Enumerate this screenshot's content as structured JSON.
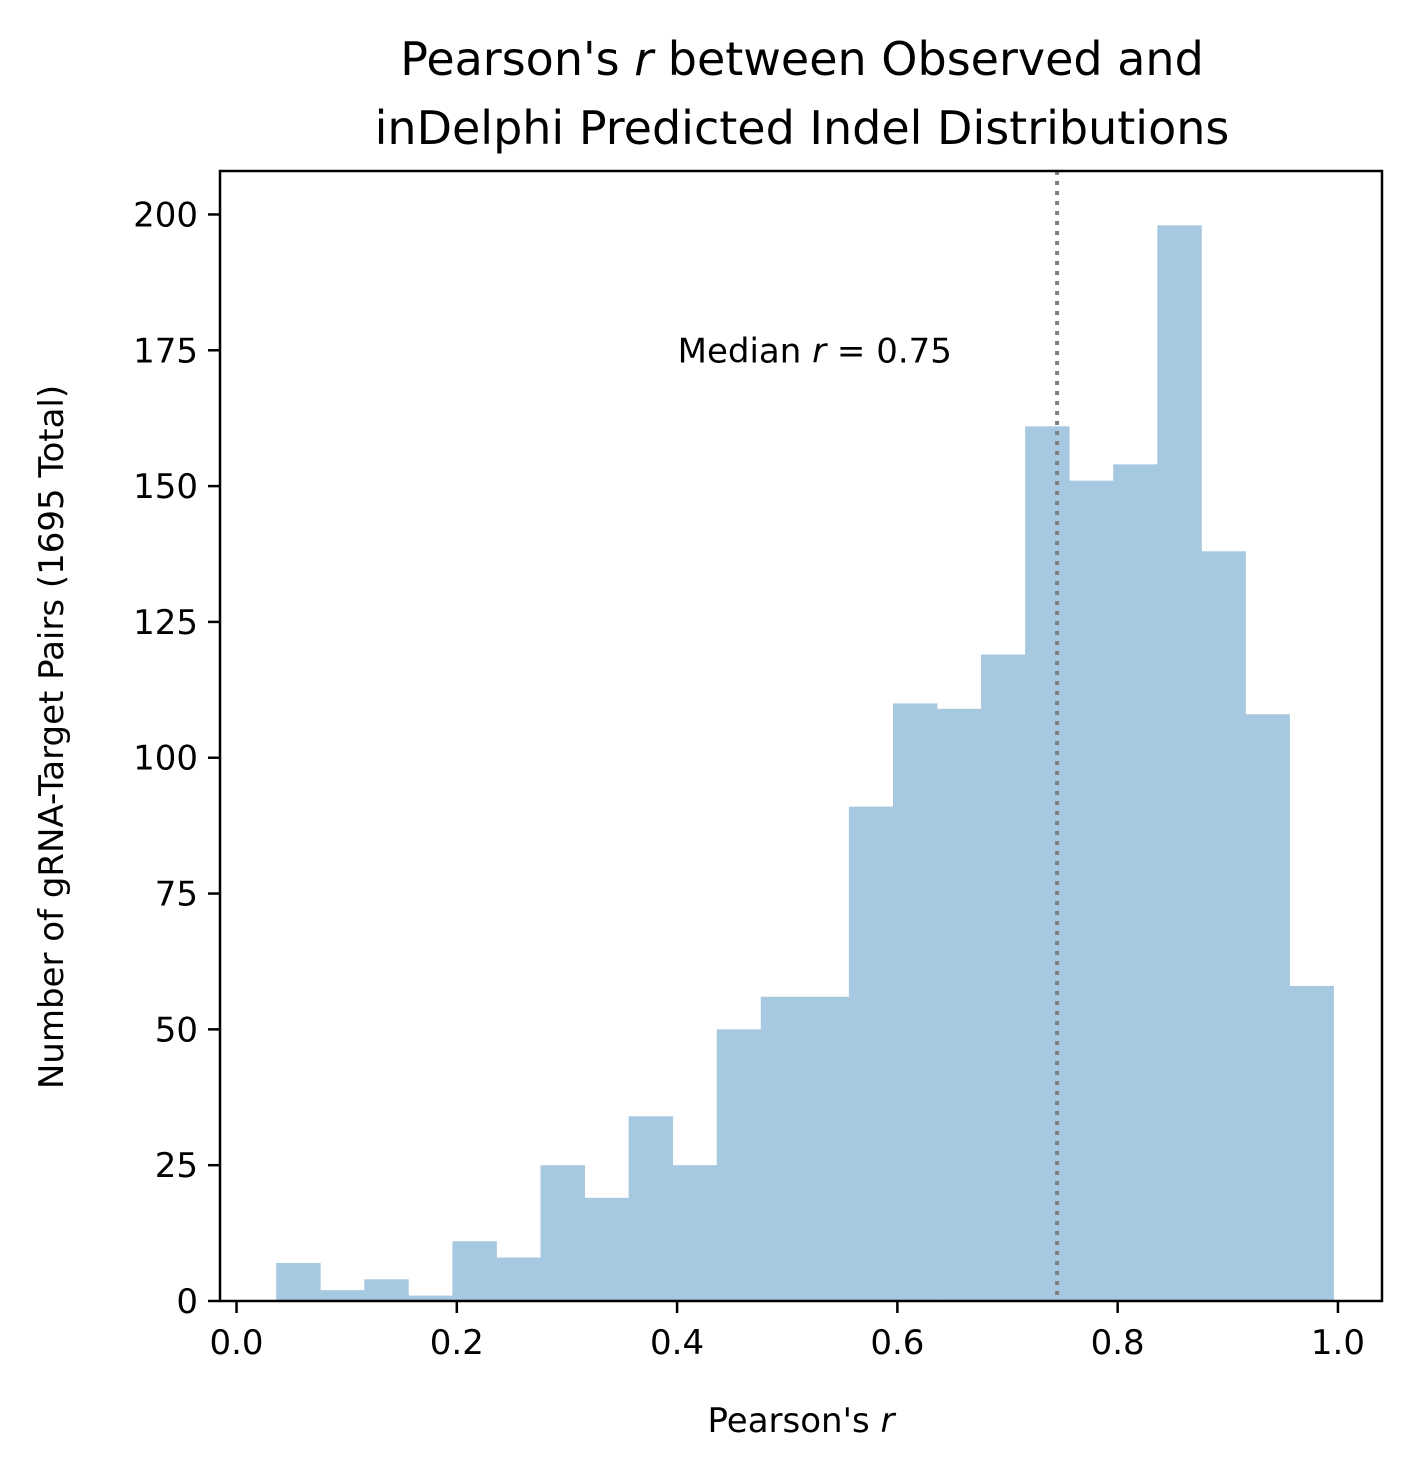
{
  "chart_data": {
    "type": "bar",
    "title_lines": [
      {
        "pre": "Pearson's ",
        "ital": "r",
        "post": " between Observed and"
      },
      {
        "pre": "inDelphi Predicted Indel Distributions",
        "ital": "",
        "post": ""
      }
    ],
    "xlabel": {
      "pre": "Pearson's ",
      "ital": "r"
    },
    "ylabel": "Number of gRNA-Target Pairs (1695 Total)",
    "xlim": [
      -0.015,
      1.04
    ],
    "ylim": [
      0,
      208
    ],
    "xticks": [
      0.0,
      0.2,
      0.4,
      0.6,
      0.8,
      1.0
    ],
    "xtick_labels": [
      "0.0",
      "0.2",
      "0.4",
      "0.6",
      "0.8",
      "1.0"
    ],
    "yticks": [
      0,
      25,
      50,
      75,
      100,
      125,
      150,
      175,
      200
    ],
    "ytick_labels": [
      "0",
      "25",
      "50",
      "75",
      "100",
      "125",
      "150",
      "175",
      "200"
    ],
    "bin_edges": [
      0.036,
      0.076,
      0.116,
      0.156,
      0.196,
      0.236,
      0.276,
      0.316,
      0.356,
      0.396,
      0.436,
      0.476,
      0.516,
      0.556,
      0.596,
      0.636,
      0.676,
      0.716,
      0.756,
      0.796,
      0.836,
      0.876,
      0.916,
      0.956,
      0.996
    ],
    "values": [
      7,
      2,
      4,
      1,
      11,
      8,
      25,
      19,
      34,
      25,
      50,
      56,
      56,
      91,
      110,
      109,
      119,
      161,
      151,
      154,
      198,
      138,
      108,
      58
    ],
    "bar_color": "#a6c8e0",
    "median_line": {
      "x": 0.745,
      "color": "#808080",
      "style": "dotted"
    },
    "annotation": {
      "pre": "Median ",
      "ital": "r",
      "post": " = 0.75",
      "x": 0.525,
      "y": 175
    }
  }
}
